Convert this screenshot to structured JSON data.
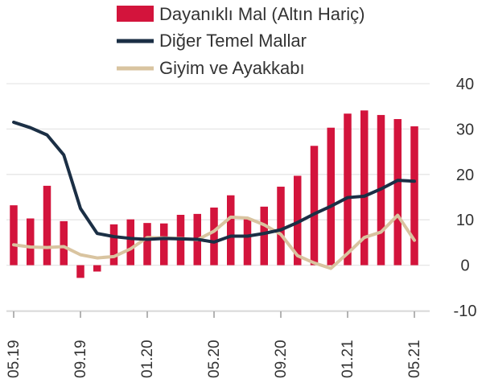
{
  "chart_data": {
    "type": "bar+line",
    "x": [
      "05.19",
      "06.19",
      "07.19",
      "08.19",
      "09.19",
      "10.19",
      "11.19",
      "12.19",
      "01.20",
      "02.20",
      "03.20",
      "04.20",
      "05.20",
      "06.20",
      "07.20",
      "08.20",
      "09.20",
      "10.20",
      "11.20",
      "12.20",
      "01.21",
      "02.21",
      "03.21",
      "04.21",
      "05.21"
    ],
    "x_tick_labels": [
      "05.19",
      "09.19",
      "01.20",
      "05.20",
      "09.20",
      "01.21",
      "05.21"
    ],
    "series": [
      {
        "name": "Dayanıklı Mal (Altın Hariç)",
        "kind": "bar",
        "color": "#d3143c",
        "values": [
          13.2,
          10.3,
          17.5,
          9.7,
          -2.8,
          -1.4,
          9.0,
          10.1,
          9.3,
          9.2,
          11.1,
          11.3,
          12.7,
          15.4,
          10.2,
          12.9,
          17.3,
          19.7,
          26.3,
          30.3,
          33.4,
          34.1,
          33.1,
          32.2,
          30.6
        ]
      },
      {
        "name": "Diğer Temel Mallar",
        "kind": "line",
        "color": "#1b2f45",
        "values": [
          31.5,
          30.3,
          28.7,
          24.3,
          12.5,
          7.0,
          6.3,
          5.9,
          5.7,
          5.9,
          5.8,
          5.7,
          5.1,
          6.4,
          6.4,
          7.0,
          7.8,
          9.4,
          11.3,
          13.0,
          14.9,
          15.2,
          16.8,
          18.7,
          18.5
        ]
      },
      {
        "name": "Giyim ve Ayakkabı",
        "kind": "line",
        "color": "#d9c4a0",
        "values": [
          4.5,
          4.0,
          3.9,
          4.1,
          2.3,
          1.6,
          1.9,
          3.6,
          6.1,
          6.0,
          5.9,
          5.6,
          7.5,
          10.6,
          10.4,
          8.9,
          6.8,
          2.1,
          0.5,
          -0.7,
          2.6,
          6.1,
          7.3,
          11.0,
          5.5
        ]
      }
    ],
    "y_ticks": [
      "40",
      "30",
      "20",
      "10",
      "0",
      "-10"
    ],
    "ylim": [
      -10,
      40
    ],
    "grid": "horizontal",
    "legend_position": "top"
  }
}
